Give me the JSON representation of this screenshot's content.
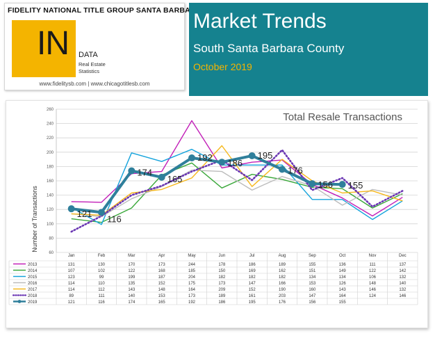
{
  "header": {
    "company": "FIDELITY NATIONAL TITLE GROUP SANTA BARBARA",
    "logo_big": "IN",
    "logo_word": "DATA",
    "logo_sub1": "Real Estate",
    "logo_sub2": "Statistics",
    "urls": "www.fidelitysb.com | www.chicagotitlesb.com",
    "title": "Market Trends",
    "subtitle": "South Santa Barbara County",
    "date": "October 2019"
  },
  "colors": {
    "banner": "#15828f",
    "accent": "#f4b400"
  },
  "chart_data": {
    "type": "line",
    "title": "Total Resale Transactions",
    "ylabel": "Number of Transactions",
    "xlabel": "",
    "ylim": [
      60,
      260
    ],
    "yticks": [
      60,
      80,
      100,
      120,
      140,
      160,
      180,
      200,
      220,
      240,
      260
    ],
    "grid": true,
    "categories": [
      "Jan",
      "Feb",
      "Mar",
      "Apr",
      "May",
      "Jun",
      "Jul",
      "Aug",
      "Sep",
      "Oct",
      "Nov",
      "Dec"
    ],
    "series": [
      {
        "name": "2013",
        "color": "#c21fb8",
        "style": "solid",
        "values": [
          131,
          130,
          170,
          173,
          244,
          178,
          186,
          189,
          155,
          136,
          111,
          137
        ]
      },
      {
        "name": "2014",
        "color": "#3aa83a",
        "style": "solid",
        "values": [
          107,
          102,
          122,
          168,
          185,
          150,
          169,
          162,
          151,
          149,
          122,
          142
        ]
      },
      {
        "name": "2015",
        "color": "#14a3dc",
        "style": "solid",
        "values": [
          123,
          99,
          199,
          187,
          204,
          182,
          182,
          182,
          134,
          134,
          106,
          132
        ]
      },
      {
        "name": "2016",
        "color": "#bcbcbc",
        "style": "solid",
        "values": [
          114,
          110,
          135,
          152,
          175,
          173,
          147,
          166,
          153,
          126,
          148,
          140
        ]
      },
      {
        "name": "2017",
        "color": "#f6b81c",
        "style": "solid",
        "values": [
          114,
          112,
          143,
          148,
          164,
          209,
          152,
          190,
          160,
          143,
          146,
          132
        ]
      },
      {
        "name": "2018",
        "color": "#6a36b3",
        "style": "dotted",
        "values": [
          89,
          111,
          140,
          153,
          173,
          189,
          161,
          203,
          147,
          164,
          124,
          146
        ]
      },
      {
        "name": "2019",
        "color": "#2f7f9b",
        "style": "bold",
        "values": [
          121,
          116,
          174,
          165,
          192,
          186,
          195,
          176,
          156,
          155,
          null,
          null
        ]
      }
    ]
  }
}
